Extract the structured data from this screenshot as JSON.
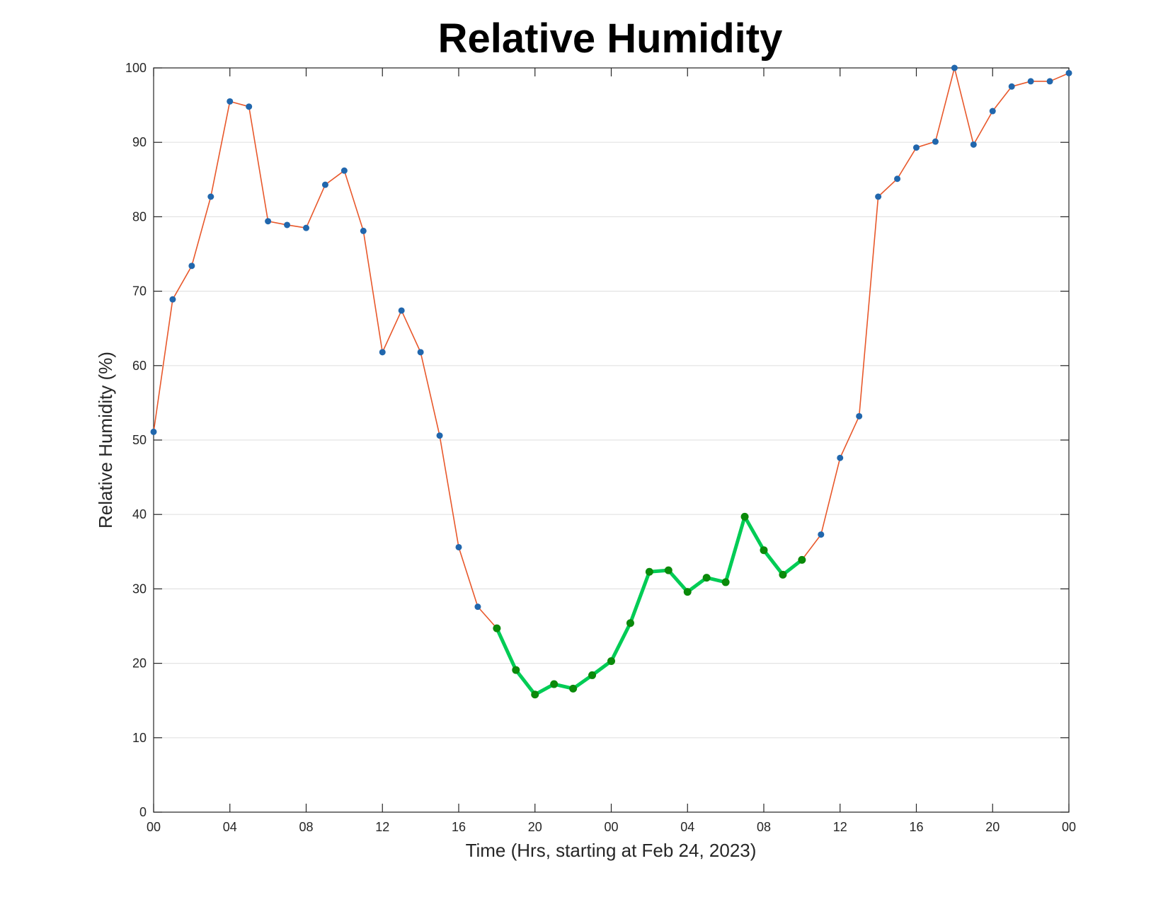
{
  "chart_data": {
    "type": "line",
    "title": "Relative Humidity",
    "xlabel": "Time (Hrs, starting at Feb 24, 2023)",
    "ylabel": "Relative Humidity (%)",
    "ylim": [
      0,
      100
    ],
    "xlim": [
      0,
      48
    ],
    "x_unit": "hours",
    "grid": "horizontal",
    "x_tick_values": [
      0,
      4,
      8,
      12,
      16,
      20,
      24,
      28,
      32,
      36,
      40,
      44,
      48
    ],
    "x_tick_labels": [
      "00",
      "04",
      "08",
      "12",
      "16",
      "20",
      "00",
      "04",
      "08",
      "12",
      "16",
      "20",
      "00"
    ],
    "y_tick_values": [
      0,
      10,
      20,
      30,
      40,
      50,
      60,
      70,
      80,
      90,
      100
    ],
    "y_tick_labels": [
      "0",
      "10",
      "20",
      "30",
      "40",
      "50",
      "60",
      "70",
      "80",
      "90",
      "100"
    ],
    "x": [
      0,
      1,
      2,
      3,
      4,
      5,
      6,
      7,
      8,
      9,
      10,
      11,
      12,
      13,
      14,
      15,
      16,
      17,
      18,
      19,
      20,
      21,
      22,
      23,
      24,
      25,
      26,
      27,
      28,
      29,
      30,
      31,
      32,
      33,
      34,
      35,
      36,
      37,
      38,
      39,
      40,
      41,
      42,
      43,
      44,
      45,
      46,
      47,
      48
    ],
    "series": [
      {
        "values": [
          51.1,
          68.9,
          73.4,
          82.7,
          95.5,
          94.8,
          79.4,
          78.9,
          78.5,
          84.3,
          86.2,
          78.1,
          61.8,
          67.4,
          61.8,
          50.6,
          35.6,
          27.6,
          24.7,
          19.1,
          15.8,
          17.2,
          16.6,
          18.4,
          20.3,
          25.4,
          32.3,
          32.5,
          29.6,
          31.5,
          30.9,
          39.7,
          35.2,
          31.9,
          33.9,
          37.3,
          47.6,
          53.2,
          82.7,
          85.1,
          89.3,
          90.1,
          100,
          89.7,
          94.2,
          97.5,
          98.2,
          98.2,
          99.3
        ],
        "line_color": "#e8582b",
        "marker_color": "#2167ad"
      }
    ],
    "highlight": {
      "x_start": 18,
      "x_end": 34,
      "line_color": "#00cc55",
      "marker_color": "#0a8a0a"
    }
  }
}
